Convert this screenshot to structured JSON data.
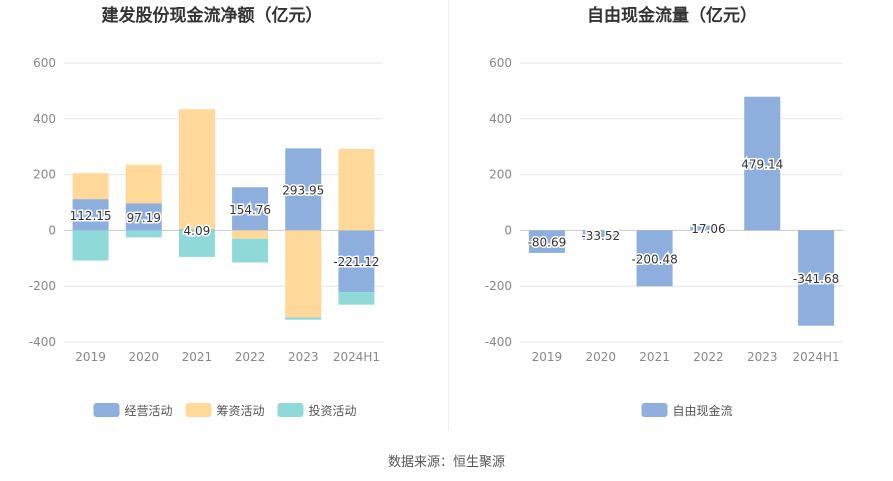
{
  "source_text": "数据来源：恒生聚源",
  "colors": {
    "operating": "#8eaedd",
    "financing": "#ffd89a",
    "investing": "#8fd9d9",
    "fcf": "#8eaedd",
    "grid": "#e6e6e6",
    "axis_text": "#888888",
    "title": "#333333"
  },
  "chart_data": [
    {
      "type": "bar",
      "stacked": true,
      "title": "建发股份现金流净额（亿元）",
      "categories": [
        "2019",
        "2020",
        "2021",
        "2022",
        "2023",
        "2024H1"
      ],
      "ylim": [
        -400,
        600
      ],
      "yticks": [
        -400,
        -200,
        0,
        200,
        400,
        600
      ],
      "grid": true,
      "legend_position": "bottom",
      "series": [
        {
          "name": "经营活动",
          "color_key": "operating",
          "values": [
            112.15,
            97.19,
            4.09,
            154.76,
            293.95,
            -221.12
          ],
          "labels": [
            "112.15",
            "97.19",
            "4.09",
            "154.76",
            "293.95",
            "-221.12"
          ]
        },
        {
          "name": "筹资活动",
          "color_key": "financing",
          "values": [
            93,
            138,
            430,
            -30,
            -312,
            292
          ],
          "labels": []
        },
        {
          "name": "投资活动",
          "color_key": "investing",
          "values": [
            -108,
            -25,
            -95,
            -85,
            -8,
            -45
          ],
          "labels": []
        }
      ]
    },
    {
      "type": "bar",
      "stacked": false,
      "title": "自由现金流量（亿元）",
      "categories": [
        "2019",
        "2020",
        "2021",
        "2022",
        "2023",
        "2024H1"
      ],
      "ylim": [
        -400,
        600
      ],
      "yticks": [
        -400,
        -200,
        0,
        200,
        400,
        600
      ],
      "grid": true,
      "legend_position": "bottom",
      "series": [
        {
          "name": "自由现金流",
          "color_key": "fcf",
          "values": [
            -80.69,
            -33.52,
            -200.48,
            17.06,
            479.14,
            -341.68
          ],
          "labels": [
            "-80.69",
            "-33.52",
            "-200.48",
            "17.06",
            "479.14",
            "-341.68"
          ]
        }
      ]
    }
  ]
}
